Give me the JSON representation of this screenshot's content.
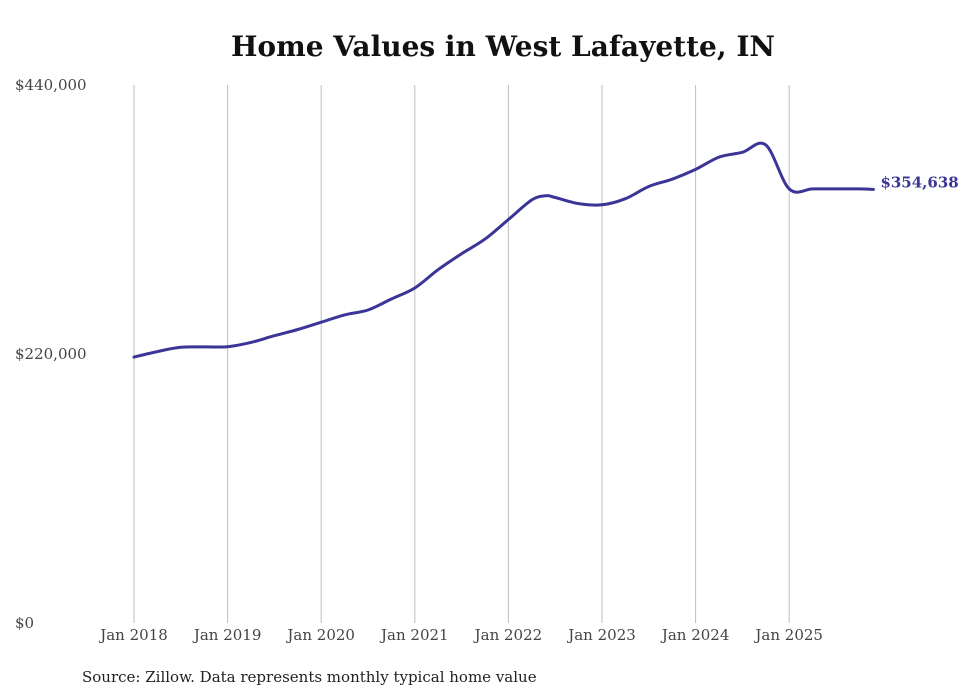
{
  "chart_data": {
    "type": "line",
    "title": "Home Values in West Lafayette, IN",
    "source": "Source: Zillow. Data represents monthly typical home value",
    "xlabel": "",
    "ylabel": "",
    "ylim": [
      0,
      440000
    ],
    "yticks": [
      {
        "value": 0,
        "label": "$0"
      },
      {
        "value": 220000,
        "label": "$220,000"
      },
      {
        "value": 440000,
        "label": "$440,000"
      }
    ],
    "xlim": [
      2018.0,
      2025.9
    ],
    "xticks": [
      {
        "value": 2018,
        "label": "Jan 2018"
      },
      {
        "value": 2019,
        "label": "Jan 2019"
      },
      {
        "value": 2020,
        "label": "Jan 2020"
      },
      {
        "value": 2021,
        "label": "Jan 2021"
      },
      {
        "value": 2022,
        "label": "Jan 2022"
      },
      {
        "value": 2023,
        "label": "Jan 2023"
      },
      {
        "value": 2024,
        "label": "Jan 2024"
      },
      {
        "value": 2025,
        "label": "Jan 2025"
      }
    ],
    "grid": "vertical",
    "line_color": "#3a3596",
    "end_label": "$354,638",
    "series": [
      {
        "name": "Typical home value",
        "x": [
          2018.0,
          2018.25,
          2018.5,
          2018.75,
          2019.0,
          2019.25,
          2019.5,
          2019.75,
          2020.0,
          2020.25,
          2020.5,
          2020.75,
          2021.0,
          2021.25,
          2021.5,
          2021.75,
          2022.0,
          2022.25,
          2022.4,
          2022.5,
          2022.75,
          2023.0,
          2023.25,
          2023.5,
          2023.75,
          2024.0,
          2024.25,
          2024.5,
          2024.75,
          2025.0,
          2025.25,
          2025.5,
          2025.75,
          2025.9
        ],
        "values": [
          217500,
          222000,
          225500,
          225800,
          226000,
          229500,
          235000,
          240000,
          246000,
          252000,
          256000,
          265000,
          274000,
          289000,
          302000,
          314000,
          330000,
          346000,
          349500,
          348000,
          343000,
          342000,
          347000,
          357000,
          363000,
          371000,
          381000,
          385000,
          391000,
          355000,
          355000,
          355000,
          355000,
          354638
        ]
      }
    ]
  }
}
